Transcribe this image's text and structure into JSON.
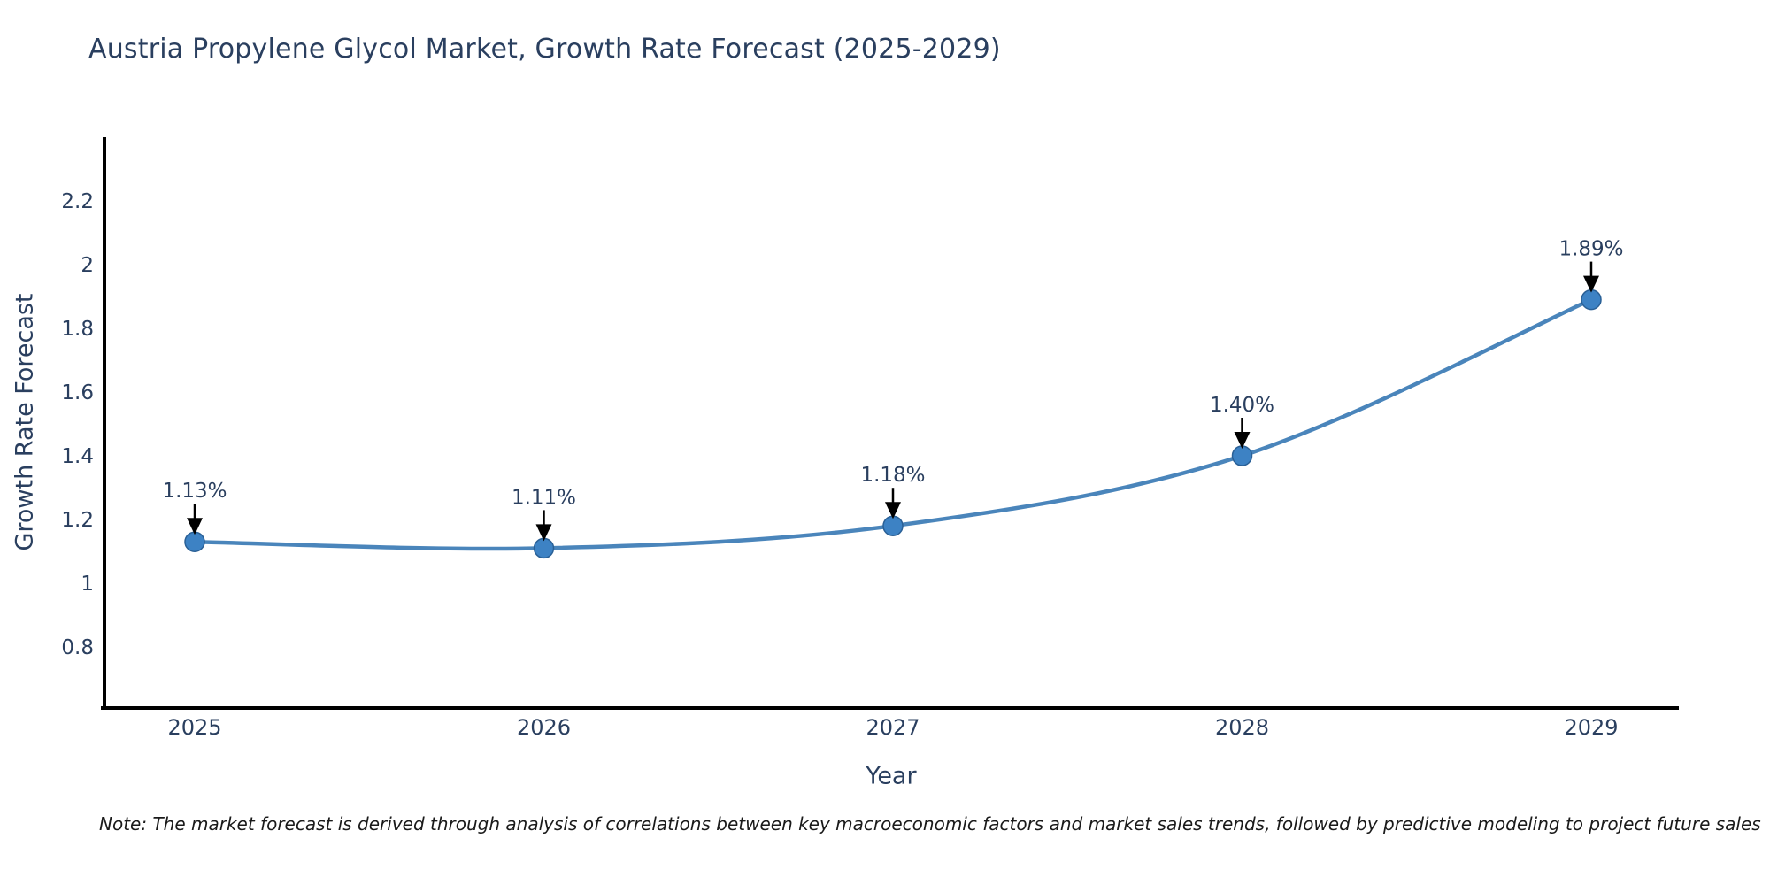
{
  "note": "Note: The market forecast is derived through analysis of correlations between key macroeconomic factors and market sales trends, followed by predictive modeling to project future sales",
  "chart_data": {
    "type": "line",
    "title": "Austria Propylene Glycol Market, Growth Rate Forecast (2025-2029)",
    "xlabel": "Year",
    "ylabel": "Growth Rate Forecast",
    "categories": [
      2025,
      2026,
      2027,
      2028,
      2029
    ],
    "values": [
      1.13,
      1.11,
      1.18,
      1.4,
      1.89
    ],
    "point_labels": [
      "1.13%",
      "1.11%",
      "1.18%",
      "1.40%",
      "1.89%"
    ],
    "yticks": [
      0.8,
      1,
      1.2,
      1.4,
      1.6,
      1.8,
      2,
      2.2
    ],
    "ylim": [
      0.61,
      2.39
    ],
    "grid": false,
    "legend": "none",
    "line_shape": "spline",
    "annotation_style": "label-with-down-arrow",
    "colors": {
      "line": "#4a85bb",
      "marker_fill": "#3d82c4",
      "marker_edge": "#2a6096",
      "axis": "#000000",
      "tick_text": "#2a3f5f",
      "annotation_text": "#2a3f5f",
      "arrow": "#000000",
      "background": "#ffffff"
    }
  }
}
